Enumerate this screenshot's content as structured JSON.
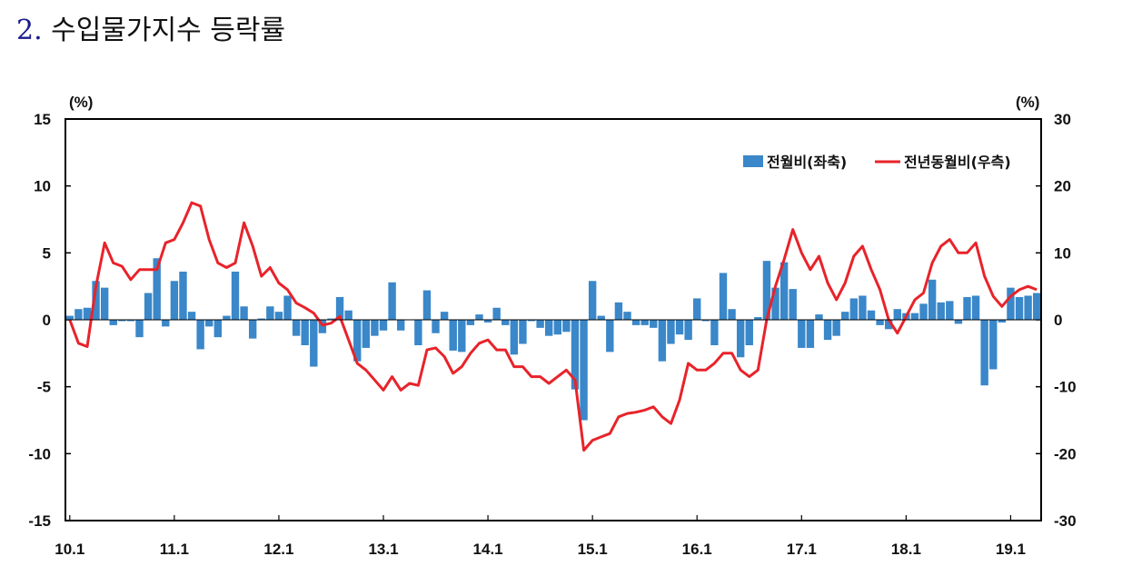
{
  "title": {
    "number": "2.",
    "text": "수입물가지수 등락률"
  },
  "chart_data": {
    "type": "bar",
    "left_unit": "(%)",
    "right_unit": "(%)",
    "x_tick_labels": [
      "10.1",
      "11.1",
      "12.1",
      "13.1",
      "14.1",
      "15.1",
      "16.1",
      "17.1",
      "18.1",
      "19.1"
    ],
    "left_axis": {
      "ylim": [
        -15,
        15
      ],
      "ticks": [
        15,
        10,
        5,
        0,
        -5,
        -10,
        -15
      ]
    },
    "right_axis": {
      "ylim": [
        -30,
        30
      ],
      "ticks": [
        30,
        20,
        10,
        0,
        -10,
        -20,
        -30
      ]
    },
    "legend": {
      "placement": "top-right"
    },
    "series": [
      {
        "name": "전월비(좌축)",
        "type": "bar",
        "axis": "left",
        "color": "#3a87c9",
        "values": [
          0.3,
          0.8,
          0.9,
          2.9,
          2.4,
          -0.4,
          -0.1,
          -0.1,
          -1.3,
          2.0,
          4.6,
          -0.5,
          2.9,
          3.6,
          0.6,
          -2.2,
          -0.5,
          -1.3,
          0.3,
          3.6,
          1.0,
          -1.4,
          0.1,
          1.0,
          0.6,
          1.8,
          -1.2,
          -1.9,
          -3.5,
          -1.0,
          0.1,
          1.7,
          0.7,
          -3.1,
          -2.1,
          -1.2,
          -0.8,
          2.8,
          -0.8,
          0.0,
          -1.9,
          2.2,
          -1.0,
          0.6,
          -2.3,
          -2.4,
          -0.4,
          0.4,
          -0.2,
          0.9,
          -0.4,
          -2.6,
          -1.8,
          -0.1,
          -0.6,
          -1.2,
          -1.1,
          -0.9,
          -5.2,
          -7.5,
          2.9,
          0.3,
          -2.4,
          1.3,
          0.6,
          -0.4,
          -0.4,
          -0.6,
          -3.1,
          -1.8,
          -1.1,
          -1.5,
          1.6,
          -0.1,
          -1.9,
          3.5,
          0.8,
          -2.8,
          -1.9,
          0.2,
          4.4,
          2.4,
          4.3,
          2.3,
          -2.1,
          -2.1,
          0.4,
          -1.5,
          -1.2,
          0.6,
          1.6,
          1.8,
          0.7,
          -0.4,
          -0.7,
          0.8,
          0.5,
          0.5,
          1.2,
          3.0,
          1.3,
          1.4,
          -0.3,
          1.7,
          1.8,
          -4.9,
          -3.7,
          -0.2,
          2.4,
          1.7,
          1.8,
          2.0
        ]
      },
      {
        "name": "전년동월비(우측)",
        "type": "line",
        "axis": "right",
        "color": "#e8232a",
        "values": [
          0.0,
          -3.5,
          -4.0,
          5.0,
          11.5,
          8.5,
          8.0,
          6.0,
          7.5,
          7.5,
          7.5,
          11.5,
          12.0,
          14.5,
          17.5,
          17.0,
          12.0,
          8.5,
          7.8,
          8.5,
          14.5,
          11.0,
          6.5,
          7.8,
          5.5,
          4.5,
          2.5,
          1.8,
          1.0,
          -0.8,
          -0.5,
          0.5,
          -3.0,
          -6.5,
          -7.5,
          -9.0,
          -10.5,
          -8.5,
          -10.5,
          -9.5,
          -9.8,
          -4.5,
          -4.2,
          -5.5,
          -8.0,
          -7.0,
          -5.0,
          -3.5,
          -3.0,
          -4.5,
          -4.5,
          -7.0,
          -7.0,
          -8.5,
          -8.5,
          -9.5,
          -8.5,
          -7.5,
          -9.0,
          -19.5,
          -18.0,
          -17.5,
          -17.0,
          -14.5,
          -14.0,
          -13.8,
          -13.5,
          -13.0,
          -14.5,
          -15.5,
          -12.0,
          -6.5,
          -7.5,
          -7.5,
          -6.5,
          -5.0,
          -5.0,
          -7.5,
          -8.5,
          -7.5,
          0.0,
          5.0,
          9.0,
          13.5,
          10.0,
          7.5,
          9.5,
          5.5,
          3.0,
          5.5,
          9.5,
          11.0,
          7.5,
          4.5,
          0.0,
          -2.0,
          0.5,
          3.0,
          4.0,
          8.5,
          11.0,
          12.0,
          10.0,
          10.0,
          11.5,
          6.5,
          3.5,
          2.0,
          3.5,
          4.5,
          5.0,
          4.5
        ]
      }
    ]
  }
}
